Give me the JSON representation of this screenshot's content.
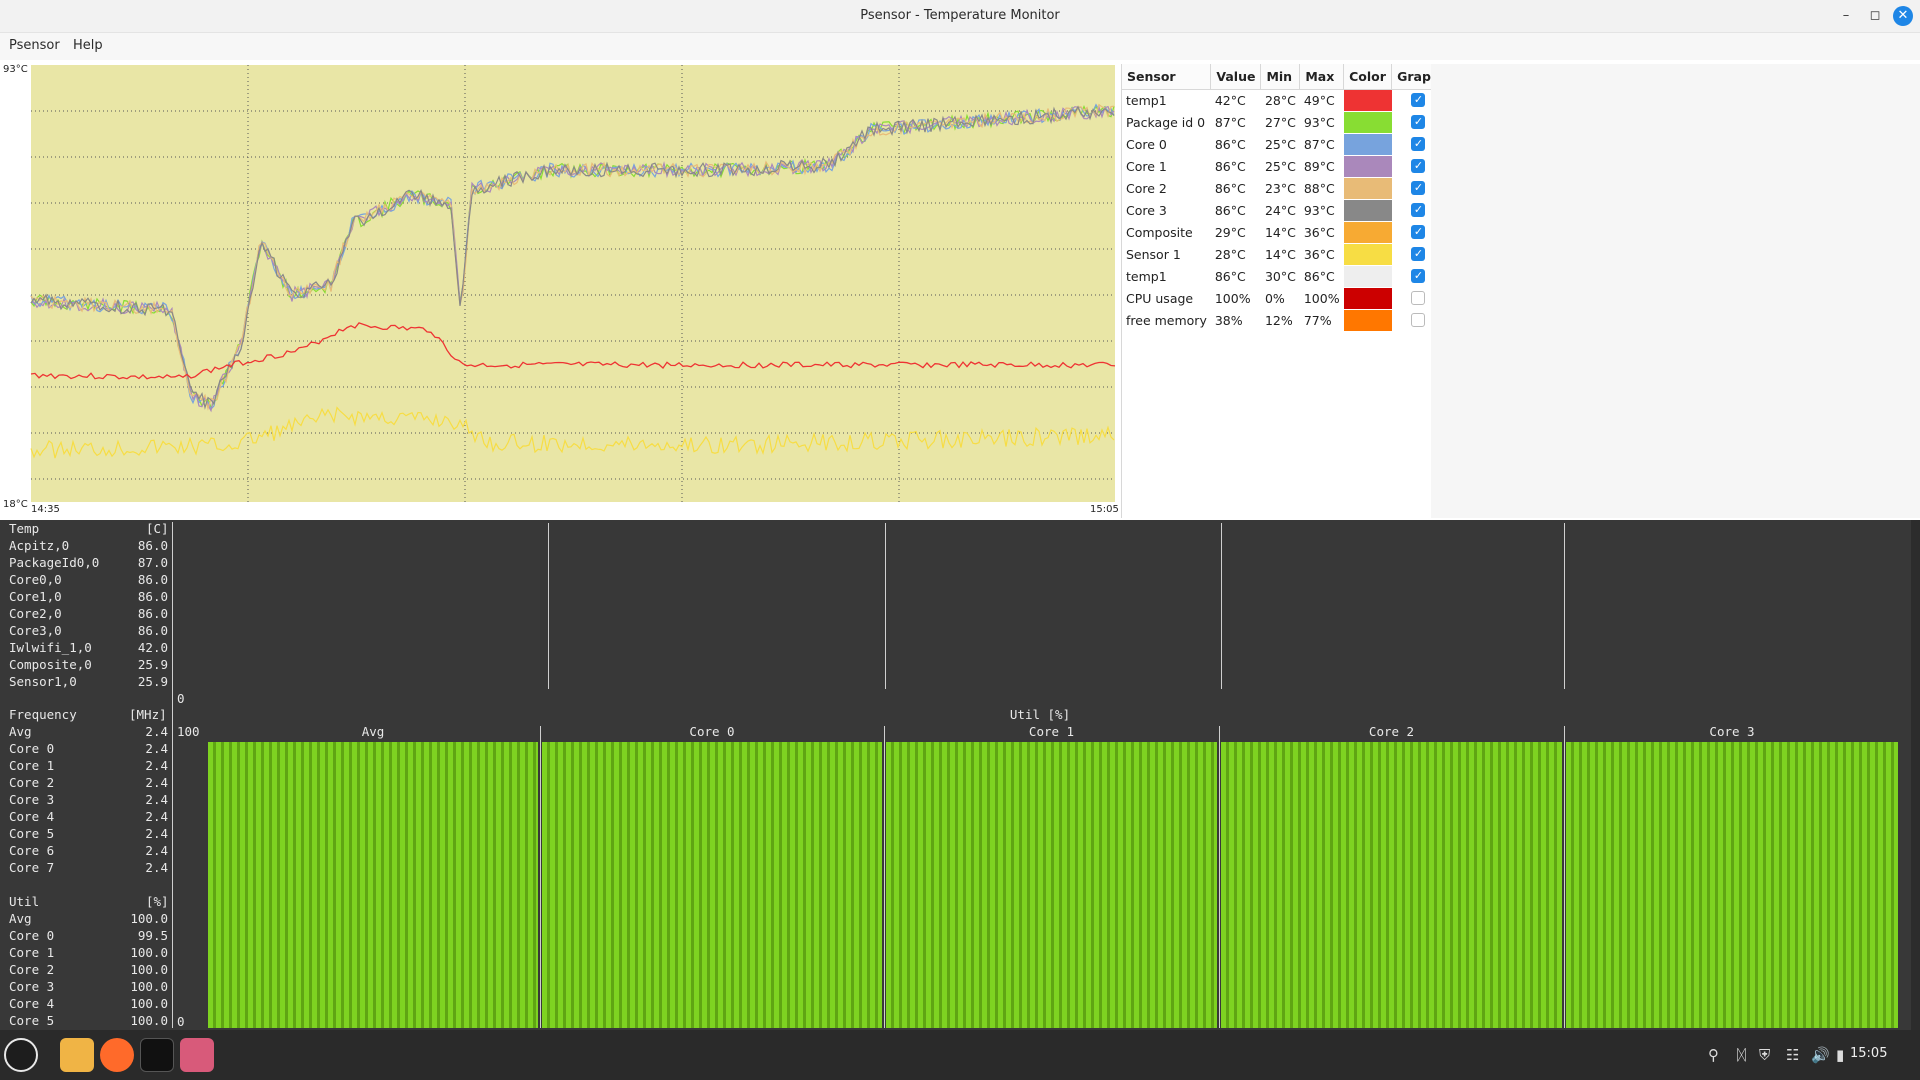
{
  "window": {
    "title": "Psensor - Temperature Monitor"
  },
  "menu": {
    "items": [
      "Psensor",
      "Help"
    ]
  },
  "graph": {
    "y_max_label": "93°C",
    "y_min_label": "18°C",
    "x_start_label": "14:35",
    "x_end_label": "15:05",
    "background": "#e9e6a6",
    "grid_color": "#555555"
  },
  "table": {
    "headers": [
      "Sensor",
      "Value",
      "Min",
      "Max",
      "Color",
      "Graph"
    ],
    "rows": [
      {
        "sensor": "temp1",
        "value": "42°C",
        "min": "28°C",
        "max": "49°C",
        "color": "#ee3333",
        "graph": true
      },
      {
        "sensor": "Package id 0",
        "value": "87°C",
        "min": "27°C",
        "max": "93°C",
        "color": "#88dd33",
        "graph": true
      },
      {
        "sensor": "Core 0",
        "value": "86°C",
        "min": "25°C",
        "max": "87°C",
        "color": "#77a3dd",
        "graph": true
      },
      {
        "sensor": "Core 1",
        "value": "86°C",
        "min": "25°C",
        "max": "89°C",
        "color": "#aa88bb",
        "graph": true
      },
      {
        "sensor": "Core 2",
        "value": "86°C",
        "min": "23°C",
        "max": "88°C",
        "color": "#e8bb77",
        "graph": true
      },
      {
        "sensor": "Core 3",
        "value": "86°C",
        "min": "24°C",
        "max": "93°C",
        "color": "#888888",
        "graph": true
      },
      {
        "sensor": "Composite",
        "value": "29°C",
        "min": "14°C",
        "max": "36°C",
        "color": "#f7aa33",
        "graph": true
      },
      {
        "sensor": "Sensor 1",
        "value": "28°C",
        "min": "14°C",
        "max": "36°C",
        "color": "#f7dd44",
        "graph": true
      },
      {
        "sensor": "temp1",
        "value": "86°C",
        "min": "30°C",
        "max": "86°C",
        "color": "#eeeeee",
        "graph": true
      },
      {
        "sensor": "CPU usage",
        "value": "100%",
        "min": "0%",
        "max": "100%",
        "color": "#cc0000",
        "graph": false
      },
      {
        "sensor": "free memory",
        "value": "38%",
        "min": "12%",
        "max": "77%",
        "color": "#ff7700",
        "graph": false
      }
    ]
  },
  "terminal": {
    "temp": {
      "title": "Temp",
      "unit": "[C]",
      "rows": [
        {
          "name": "Acpitz,0",
          "value": "86.0"
        },
        {
          "name": "PackageId0,0",
          "value": "87.0"
        },
        {
          "name": "Core0,0",
          "value": "86.0"
        },
        {
          "name": "Core1,0",
          "value": "86.0"
        },
        {
          "name": "Core2,0",
          "value": "86.0"
        },
        {
          "name": "Core3,0",
          "value": "86.0"
        },
        {
          "name": "Iwlwifi_1,0",
          "value": "42.0"
        },
        {
          "name": "Composite,0",
          "value": "25.9"
        },
        {
          "name": "Sensor1,0",
          "value": "25.9"
        }
      ],
      "axis_zero": "0"
    },
    "frequency": {
      "title": "Frequency",
      "unit": "[MHz]",
      "rows": [
        {
          "name": "Avg",
          "value": "2.4"
        },
        {
          "name": "Core 0",
          "value": "2.4"
        },
        {
          "name": "Core 1",
          "value": "2.4"
        },
        {
          "name": "Core 2",
          "value": "2.4"
        },
        {
          "name": "Core 3",
          "value": "2.4"
        },
        {
          "name": "Core 4",
          "value": "2.4"
        },
        {
          "name": "Core 5",
          "value": "2.4"
        },
        {
          "name": "Core 6",
          "value": "2.4"
        },
        {
          "name": "Core 7",
          "value": "2.4"
        }
      ]
    },
    "util": {
      "title": "Util",
      "unit": "[%]",
      "rows": [
        {
          "name": "Avg",
          "value": "100.0"
        },
        {
          "name": "Core 0",
          "value": "99.5"
        },
        {
          "name": "Core 1",
          "value": "100.0"
        },
        {
          "name": "Core 2",
          "value": "100.0"
        },
        {
          "name": "Core 3",
          "value": "100.0"
        },
        {
          "name": "Core 4",
          "value": "100.0"
        },
        {
          "name": "Core 5",
          "value": "100.0"
        }
      ]
    },
    "util_chart": {
      "title": "Util [%]",
      "axis_top": "100",
      "axis_bottom": "0",
      "panels": [
        "Avg",
        "Core 0",
        "Core 1",
        "Core 2",
        "Core 3"
      ],
      "levels": [
        1.0,
        1.0,
        1.0,
        1.0,
        1.0
      ],
      "bar_color_a": "#7ed321",
      "bar_color_b": "#5fa513"
    }
  },
  "taskbar": {
    "clock": "15:05",
    "launchers": [
      "menu-icon",
      "files-icon",
      "firefox-icon",
      "terminal-icon",
      "psensor-icon"
    ]
  }
}
